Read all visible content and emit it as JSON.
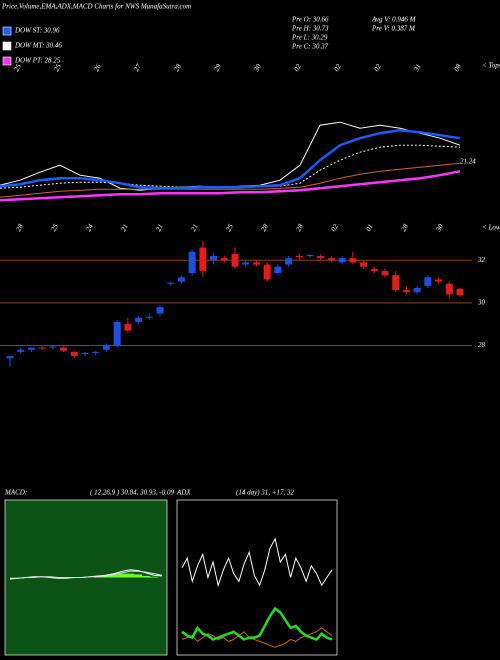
{
  "header": {
    "title": "Price,Volume,EMA,ADX,MACD Charts for NWS MunafaSutra.com",
    "legend": [
      {
        "label": "DOW ST: 30.96",
        "color": "#1e5bff"
      },
      {
        "label": "DOW MT: 30.46",
        "color": "#ffffff"
      },
      {
        "label": "DOW PT: 28.25",
        "color": "#ff33ff"
      }
    ],
    "info": [
      "Pre  O: 30.66",
      "Pre  H: 30.73",
      "Pre  L: 30.29",
      "Pre  C: 30.37",
      "Avg V: 0.946  M",
      "Pre  V: 0.387 M"
    ]
  },
  "chart_data": [
    {
      "type": "line",
      "side_label": "< Tops",
      "annotation": "21.24",
      "ylim": [
        24.5,
        37.5
      ],
      "date_labels": [
        "25",
        "25",
        "26",
        "27",
        "28",
        "29",
        "30",
        "02",
        "02",
        "02",
        "31",
        "08"
      ],
      "series": [
        {
          "color": "#ffffff",
          "width": 1,
          "values": [
            27.07,
            27.48,
            28.15,
            28.73,
            27.9,
            27.65,
            26.82,
            26.65,
            26.82,
            26.9,
            26.98,
            26.9,
            26.98,
            27.07,
            27.48,
            28.73,
            32.07,
            32.32,
            31.82,
            32.07,
            31.82,
            31.4,
            30.98,
            30.4
          ]
        },
        {
          "color": "#cc6622",
          "width": 1,
          "values": [
            26.07,
            26.23,
            26.4,
            26.57,
            26.65,
            26.73,
            26.73,
            26.73,
            26.73,
            26.73,
            26.73,
            26.73,
            26.73,
            26.73,
            26.82,
            26.9,
            27.23,
            27.65,
            27.98,
            28.23,
            28.4,
            28.57,
            28.73,
            28.9
          ]
        },
        {
          "color": "#ffffff",
          "width": 1,
          "dash": true,
          "values": [
            26.82,
            26.9,
            27.07,
            27.23,
            27.32,
            27.32,
            27.23,
            27.07,
            26.98,
            26.9,
            26.9,
            26.9,
            26.9,
            26.98,
            26.98,
            27.23,
            28.32,
            29.15,
            29.82,
            30.23,
            30.4,
            30.4,
            30.32,
            30.23
          ]
        },
        {
          "color": "#ff33ff",
          "width": 2.5,
          "values": [
            25.82,
            25.9,
            25.98,
            26.07,
            26.15,
            26.23,
            26.32,
            26.32,
            26.4,
            26.4,
            26.4,
            26.4,
            26.48,
            26.48,
            26.57,
            26.65,
            26.82,
            26.98,
            27.15,
            27.32,
            27.48,
            27.65,
            27.9,
            28.23
          ]
        },
        {
          "color": "#1e5bff",
          "width": 2.5,
          "values": [
            26.98,
            27.15,
            27.48,
            27.65,
            27.65,
            27.48,
            27.23,
            26.9,
            26.82,
            26.82,
            26.9,
            26.9,
            26.9,
            26.98,
            27.07,
            27.65,
            29.15,
            30.4,
            30.98,
            31.4,
            31.65,
            31.48,
            31.23,
            30.98
          ]
        }
      ]
    },
    {
      "type": "candlestick",
      "side_label": "< Lows",
      "up_color": "#1e4fe0",
      "down_color": "#e01e1e",
      "grid_color": "#8b4513",
      "ylim": [
        26.8,
        33.0
      ],
      "yticks": [
        28,
        30,
        32
      ],
      "date_labels": [
        "28",
        "25",
        "24",
        "21",
        "21",
        "21",
        "25",
        "28",
        "28",
        "02",
        "01",
        "28",
        "30"
      ],
      "open": [
        27.4,
        27.7,
        27.8,
        27.9,
        27.9,
        27.9,
        27.7,
        27.6,
        27.65,
        27.8,
        28.0,
        29.0,
        29.1,
        29.3,
        29.5,
        30.9,
        31.0,
        31.4,
        32.6,
        32.0,
        32.1,
        32.3,
        31.8,
        31.9,
        31.8,
        31.4,
        31.8,
        32.2,
        32.2,
        32.2,
        32.1,
        31.9,
        32.1,
        31.9,
        31.6,
        31.5,
        31.3,
        30.6,
        30.5,
        30.8,
        31.1,
        30.9,
        30.66
      ],
      "high": [
        27.5,
        27.9,
        27.9,
        28.0,
        28.0,
        27.95,
        27.75,
        27.7,
        27.75,
        28.1,
        29.2,
        29.3,
        29.4,
        29.5,
        29.9,
        31.0,
        31.3,
        32.5,
        32.9,
        32.3,
        32.2,
        32.6,
        32.0,
        32.0,
        31.9,
        31.8,
        32.2,
        32.3,
        32.3,
        32.3,
        32.2,
        32.2,
        32.4,
        32.0,
        31.7,
        31.6,
        31.5,
        30.8,
        30.8,
        31.3,
        31.2,
        31.0,
        30.73
      ],
      "low": [
        27.0,
        27.6,
        27.7,
        27.8,
        27.8,
        27.7,
        27.4,
        27.5,
        27.55,
        27.7,
        27.9,
        28.6,
        29.0,
        29.2,
        29.4,
        30.8,
        30.9,
        31.3,
        31.2,
        31.8,
        31.9,
        31.6,
        31.7,
        31.7,
        31.0,
        31.3,
        31.7,
        32.0,
        32.1,
        32.0,
        31.9,
        31.8,
        31.8,
        31.6,
        31.4,
        31.2,
        30.5,
        30.4,
        30.4,
        30.7,
        30.9,
        30.2,
        30.29
      ],
      "close": [
        27.5,
        27.8,
        27.9,
        27.85,
        27.95,
        27.75,
        27.5,
        27.65,
        27.7,
        28.0,
        29.1,
        28.7,
        29.3,
        29.35,
        29.8,
        30.95,
        31.2,
        32.4,
        31.5,
        32.2,
        32.0,
        31.7,
        31.9,
        31.8,
        31.1,
        31.7,
        32.1,
        32.15,
        32.25,
        32.1,
        32.0,
        32.1,
        31.9,
        31.7,
        31.5,
        31.3,
        30.6,
        30.5,
        30.7,
        31.2,
        31.0,
        30.4,
        30.37
      ]
    },
    {
      "type": "macd",
      "title": "MACD:",
      "subtitle": "( 12,26,9 ) 30.84, 30.93, -0.09",
      "background": "#0b5416",
      "bar_color": "#66ff33",
      "ylim": [
        -10,
        10
      ],
      "histogram": [
        0,
        0,
        0,
        0.1,
        0,
        0,
        -0.1,
        0,
        0,
        0,
        0,
        0.1,
        0.2,
        0.4,
        0.5,
        0.5,
        0.4,
        0.2,
        0.1,
        0
      ],
      "series": [
        {
          "color": "#ffffff",
          "values": [
            -0.2,
            -0.1,
            0,
            0.1,
            0.1,
            0,
            -0.1,
            -0.1,
            0,
            0,
            0.1,
            0.2,
            0.3,
            0.5,
            0.8,
            1.0,
            0.9,
            0.6,
            0.3,
            0.2
          ]
        },
        {
          "color": "#dddddd",
          "values": [
            -0.1,
            -0.1,
            0,
            0,
            0.1,
            0.1,
            0,
            0,
            0,
            0,
            0.1,
            0.1,
            0.2,
            0.4,
            0.6,
            0.8,
            0.8,
            0.7,
            0.5,
            0.3
          ]
        }
      ]
    },
    {
      "type": "adx",
      "title": "ADX",
      "subtitle": "(14 day) 31, +17, 32",
      "background": "#000000",
      "ylim": [
        0,
        80
      ],
      "series": [
        {
          "color": "#ffffff",
          "width": 1,
          "values": [
            45,
            50,
            38,
            46,
            52,
            40,
            48,
            36,
            44,
            50,
            42,
            38,
            47,
            53,
            41,
            36,
            44,
            55,
            60,
            48,
            52,
            40,
            50,
            45,
            38,
            46,
            42,
            36,
            40,
            44
          ]
        },
        {
          "color": "#cc6622",
          "width": 1,
          "values": [
            8,
            9,
            10,
            7,
            9,
            11,
            10,
            8,
            9,
            7,
            8,
            10,
            12,
            9,
            8,
            7,
            6,
            5,
            4,
            5,
            6,
            8,
            7,
            9,
            10,
            11,
            12,
            14,
            12,
            10
          ]
        },
        {
          "color": "#22dd22",
          "width": 2.5,
          "values": [
            12,
            10,
            9,
            14,
            11,
            10,
            8,
            9,
            10,
            11,
            12,
            10,
            8,
            9,
            9,
            10,
            15,
            20,
            24,
            22,
            18,
            14,
            15,
            12,
            10,
            9,
            8,
            11,
            9,
            8
          ]
        }
      ]
    }
  ]
}
